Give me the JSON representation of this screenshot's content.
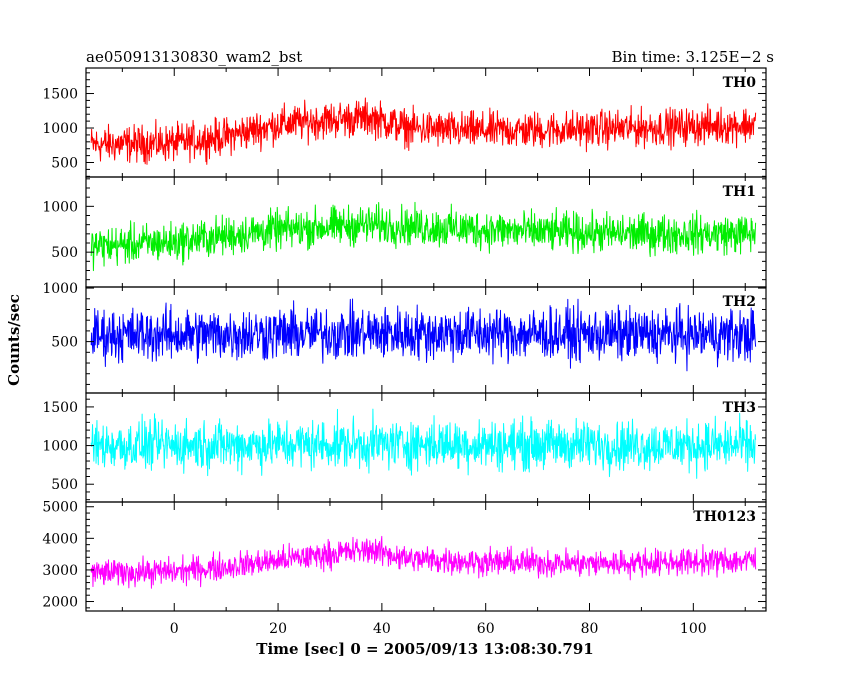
{
  "chart_data": {
    "type": "line",
    "title_left": "ae050913130830_wam2_bst",
    "title_right": "Bin time: 3.125E−2 s",
    "xlabel": "Time [sec] 0 = 2005/09/13 13:08:30.791",
    "ylabel": "Counts/sec",
    "xlim": [
      -17,
      114
    ],
    "xticks": [
      "0",
      "20",
      "40",
      "60",
      "80",
      "100"
    ],
    "grid": false,
    "panels": [
      {
        "name": "TH0",
        "color": "#ff0000",
        "ylim": [
          290,
          1870
        ],
        "yticks": [
          "500",
          "1000",
          "1500"
        ],
        "baseline_points": [
          [
            -16,
            760
          ],
          [
            0,
            780
          ],
          [
            10,
            880
          ],
          [
            20,
            1050
          ],
          [
            30,
            1120
          ],
          [
            38,
            1150
          ],
          [
            45,
            1000
          ],
          [
            55,
            960
          ],
          [
            70,
            970
          ],
          [
            90,
            1000
          ],
          [
            112,
            1050
          ]
        ],
        "noise_amplitude": 300
      },
      {
        "name": "TH1",
        "color": "#00ee00",
        "ylim": [
          120,
          1320
        ],
        "yticks": [
          "500",
          "1000"
        ],
        "baseline_points": [
          [
            -16,
            560
          ],
          [
            0,
            610
          ],
          [
            10,
            680
          ],
          [
            20,
            740
          ],
          [
            30,
            780
          ],
          [
            38,
            800
          ],
          [
            50,
            770
          ],
          [
            70,
            720
          ],
          [
            90,
            700
          ],
          [
            112,
            700
          ]
        ],
        "noise_amplitude": 240
      },
      {
        "name": "TH2",
        "color": "#0000ff",
        "ylim": [
          20,
          1010
        ],
        "yticks": [
          "500",
          "1000"
        ],
        "baseline_points": [
          [
            -16,
            560
          ],
          [
            40,
            580
          ],
          [
            112,
            560
          ]
        ],
        "noise_amplitude": 280
      },
      {
        "name": "TH3",
        "color": "#00ffff",
        "ylim": [
          270,
          1680
        ],
        "yticks": [
          "500",
          "1000",
          "1500"
        ],
        "baseline_points": [
          [
            -16,
            1000
          ],
          [
            40,
            1020
          ],
          [
            112,
            1000
          ]
        ],
        "noise_amplitude": 360
      },
      {
        "name": "TH0123",
        "color": "#ff00ff",
        "ylim": [
          1700,
          5150
        ],
        "yticks": [
          "2000",
          "3000",
          "4000",
          "5000"
        ],
        "baseline_points": [
          [
            -16,
            2900
          ],
          [
            0,
            2950
          ],
          [
            10,
            3100
          ],
          [
            20,
            3300
          ],
          [
            30,
            3500
          ],
          [
            38,
            3650
          ],
          [
            45,
            3350
          ],
          [
            60,
            3250
          ],
          [
            80,
            3200
          ],
          [
            112,
            3300
          ]
        ],
        "noise_amplitude": 480
      }
    ]
  }
}
